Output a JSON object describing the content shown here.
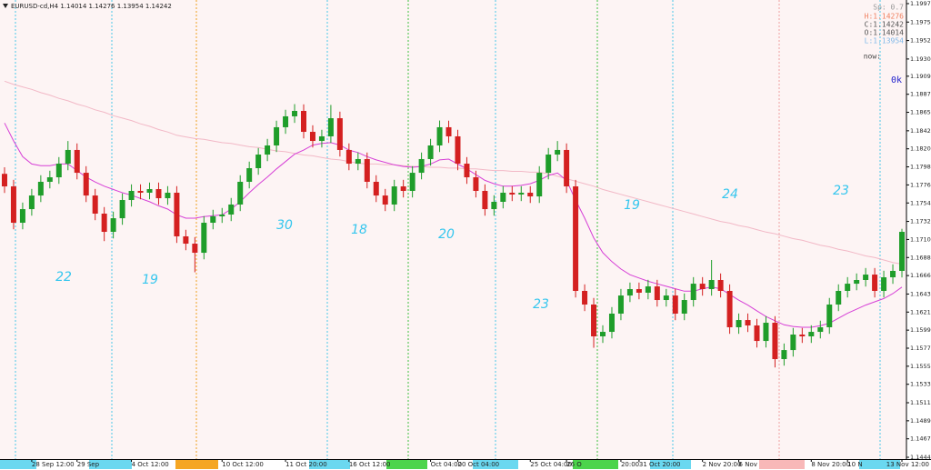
{
  "header": {
    "symbol_line": "EURUSD-cd,H4  1.14014 1.14276 1.13954 1.14242"
  },
  "info_panel": {
    "spread": "Sp: 0.7",
    "high": "H:1.14276",
    "close": "C:1.14242",
    "open": "O:1.14014",
    "low": "L:1.13954",
    "now": "now:",
    "status": "0k"
  },
  "chart_data": {
    "type": "candlestick",
    "categories": [
      null,
      null,
      null,
      "28 Sep 12:00",
      null,
      null,
      null,
      null,
      "29 Sep",
      null,
      null,
      null,
      null,
      null,
      "4 Oct 12:00",
      null,
      null,
      null,
      null,
      null,
      null,
      null,
      null,
      null,
      "10 Oct 12:00",
      null,
      null,
      null,
      null,
      null,
      null,
      "11 Oct 20:00",
      null,
      null,
      null,
      null,
      null,
      null,
      "16 Oct 12:00",
      null,
      null,
      null,
      null,
      null,
      null,
      null,
      null,
      "Oct 04:00",
      null,
      null,
      "20 Oct 04:00",
      null,
      null,
      null,
      null,
      null,
      null,
      null,
      "25 Oct 04:00",
      null,
      null,
      null,
      "26 O",
      null,
      null,
      null,
      null,
      null,
      "20:00",
      null,
      "31 Oct 20:00",
      null,
      null,
      null,
      null,
      null,
      null,
      "2 Nov 20:00",
      null,
      null,
      null,
      "6 Nov",
      null,
      null,
      null,
      null,
      null,
      null,
      null,
      "8 Nov 20:00",
      null,
      null,
      null,
      "10 N",
      null,
      null,
      null,
      null,
      null,
      "13 Nov 12:00"
    ],
    "open": [
      1.179,
      1.17747,
      1.17304,
      1.1747,
      1.17636,
      1.17803,
      1.17858,
      1.18024,
      1.18191,
      1.17913,
      1.17636,
      1.17415,
      1.17193,
      1.17359,
      1.17581,
      1.17692,
      1.1767,
      1.17714,
      1.17603,
      1.1767,
      1.17138,
      1.17049,
      1.16938,
      1.17304,
      1.17382,
      1.17404,
      1.17526,
      1.17803,
      1.17969,
      1.18135,
      1.18246,
      1.18468,
      1.18601,
      1.18667,
      1.18412,
      1.18301,
      1.18357,
      1.18578,
      1.18191,
      1.18024,
      1.1808,
      1.17803,
      1.17636,
      1.17526,
      1.17747,
      1.17692,
      1.17913,
      1.1808,
      1.18246,
      1.18468,
      1.18357,
      1.18024,
      1.17858,
      1.17692,
      1.1747,
      1.17559,
      1.1767,
      1.17648,
      1.1767,
      1.17625,
      1.17913,
      1.18135,
      1.18191,
      1.17747,
      1.16473,
      1.16307,
      1.15919,
      1.15974,
      1.16196,
      1.16417,
      1.16495,
      1.16451,
      1.16528,
      1.16362,
      1.16417,
      1.16196,
      1.16362,
      1.16561,
      1.16495,
      1.16606,
      1.16473,
      1.1603,
      1.16118,
      1.16052,
      1.15863,
      1.16085,
      1.15642,
      1.15752,
      1.15941,
      1.15919,
      1.15974,
      1.1603,
      1.16307,
      1.16473,
      1.16561,
      1.16606,
      1.16672,
      1.16473,
      1.16639,
      1.16717
    ],
    "high": [
      1.1798,
      1.17827,
      1.1755,
      1.17716,
      1.17883,
      1.17938,
      1.18104,
      1.183,
      1.18271,
      1.17993,
      1.17716,
      1.17495,
      1.17439,
      1.17661,
      1.17772,
      1.17772,
      1.17794,
      1.17794,
      1.1775,
      1.1775,
      1.17218,
      1.17129,
      1.17384,
      1.17462,
      1.17484,
      1.17606,
      1.17883,
      1.18049,
      1.18215,
      1.18326,
      1.18548,
      1.18681,
      1.1875,
      1.18747,
      1.18492,
      1.18437,
      1.1874,
      1.18658,
      1.18271,
      1.1816,
      1.1816,
      1.17883,
      1.17716,
      1.17827,
      1.17827,
      1.17993,
      1.1816,
      1.18326,
      1.1855,
      1.18548,
      1.18437,
      1.18104,
      1.17938,
      1.17772,
      1.17639,
      1.1775,
      1.1775,
      1.1775,
      1.1775,
      1.17993,
      1.18215,
      1.183,
      1.18271,
      1.17827,
      1.16553,
      1.16387,
      1.16054,
      1.16276,
      1.16497,
      1.16575,
      1.16575,
      1.16608,
      1.16608,
      1.16497,
      1.16497,
      1.16442,
      1.16641,
      1.16641,
      1.1685,
      1.16686,
      1.16553,
      1.16198,
      1.16198,
      1.16132,
      1.16165,
      1.16165,
      1.15832,
      1.16021,
      1.16021,
      1.16054,
      1.1611,
      1.16387,
      1.16553,
      1.16641,
      1.16686,
      1.16752,
      1.16752,
      1.16719,
      1.16797,
      1.1723
    ],
    "low": [
      1.17667,
      1.17224,
      1.17224,
      1.1739,
      1.17556,
      1.17723,
      1.17778,
      1.17944,
      1.17833,
      1.17556,
      1.17335,
      1.1708,
      1.17113,
      1.17279,
      1.17501,
      1.1759,
      1.1759,
      1.17523,
      1.17523,
      1.17058,
      1.16969,
      1.167,
      1.16858,
      1.17224,
      1.17302,
      1.17324,
      1.17446,
      1.17723,
      1.17889,
      1.18055,
      1.18166,
      1.18388,
      1.18521,
      1.18332,
      1.18221,
      1.18221,
      1.18277,
      1.18111,
      1.17944,
      1.17944,
      1.17723,
      1.17556,
      1.17446,
      1.17446,
      1.17612,
      1.17612,
      1.17833,
      1.18,
      1.18166,
      1.18277,
      1.17944,
      1.17778,
      1.17612,
      1.1739,
      1.1739,
      1.17479,
      1.17568,
      1.17568,
      1.17545,
      1.17545,
      1.17833,
      1.18055,
      1.17667,
      1.16393,
      1.16227,
      1.1578,
      1.15839,
      1.15894,
      1.16116,
      1.16337,
      1.16371,
      1.16371,
      1.16282,
      1.16282,
      1.16116,
      1.16116,
      1.16282,
      1.16415,
      1.16415,
      1.16393,
      1.1595,
      1.1595,
      1.15972,
      1.15783,
      1.15783,
      1.1554,
      1.15562,
      1.15672,
      1.15839,
      1.15839,
      1.15894,
      1.1595,
      1.16227,
      1.16393,
      1.16481,
      1.16526,
      1.16393,
      1.16393,
      1.16559,
      1.16637
    ],
    "close": [
      1.17747,
      1.17304,
      1.1747,
      1.17636,
      1.17803,
      1.17858,
      1.18024,
      1.18191,
      1.17913,
      1.17636,
      1.17415,
      1.17193,
      1.17359,
      1.17581,
      1.17692,
      1.1767,
      1.17714,
      1.17603,
      1.1767,
      1.17138,
      1.17049,
      1.16938,
      1.17304,
      1.17382,
      1.17404,
      1.17526,
      1.17803,
      1.17969,
      1.18135,
      1.18246,
      1.18468,
      1.18601,
      1.18667,
      1.18412,
      1.18301,
      1.18357,
      1.18578,
      1.18191,
      1.18024,
      1.1808,
      1.17803,
      1.17636,
      1.17526,
      1.17747,
      1.17692,
      1.17913,
      1.1808,
      1.18246,
      1.18468,
      1.18357,
      1.18024,
      1.17858,
      1.17692,
      1.1747,
      1.17559,
      1.1767,
      1.17648,
      1.1767,
      1.17625,
      1.17913,
      1.18135,
      1.18191,
      1.17747,
      1.16473,
      1.16307,
      1.15919,
      1.15974,
      1.16196,
      1.16417,
      1.16495,
      1.16451,
      1.16528,
      1.16362,
      1.16417,
      1.16196,
      1.16362,
      1.16561,
      1.16495,
      1.16606,
      1.16473,
      1.1603,
      1.16118,
      1.16052,
      1.15863,
      1.16085,
      1.15642,
      1.15752,
      1.15941,
      1.15919,
      1.15974,
      1.1603,
      1.16307,
      1.16473,
      1.16561,
      1.16606,
      1.16672,
      1.16473,
      1.16639,
      1.16717,
      1.17193
    ],
    "up_color": "#1f9d2a",
    "down_color": "#d42020",
    "series": [
      {
        "color": "#f2b8c6",
        "values": [
          1.1903,
          1.1899,
          1.1896,
          1.1893,
          1.1889,
          1.1886,
          1.1882,
          1.1879,
          1.1875,
          1.1872,
          1.1868,
          1.1865,
          1.1861,
          1.1858,
          1.1855,
          1.1851,
          1.1848,
          1.1844,
          1.1841,
          1.1837,
          1.1835,
          1.1833,
          1.1832,
          1.183,
          1.1828,
          1.1827,
          1.1825,
          1.1823,
          1.1822,
          1.182,
          1.1818,
          1.1817,
          1.1815,
          1.1813,
          1.1812,
          1.181,
          1.1808,
          1.1807,
          1.1805,
          1.1803,
          1.1802,
          1.1802,
          1.1801,
          1.1801,
          1.18,
          1.1799,
          1.1799,
          1.1798,
          1.1798,
          1.1797,
          1.1797,
          1.1796,
          1.1796,
          1.1795,
          1.1794,
          1.1794,
          1.1793,
          1.1793,
          1.1792,
          1.1792,
          1.179,
          1.1787,
          1.1784,
          1.1781,
          1.1778,
          1.1775,
          1.1771,
          1.1768,
          1.1765,
          1.1762,
          1.1759,
          1.1756,
          1.1753,
          1.175,
          1.1747,
          1.1744,
          1.1741,
          1.1738,
          1.1735,
          1.1732,
          1.173,
          1.1727,
          1.1725,
          1.1722,
          1.1719,
          1.1717,
          1.1714,
          1.1711,
          1.1709,
          1.1706,
          1.1703,
          1.1701,
          1.1698,
          1.1696,
          1.1693,
          1.169,
          1.1688,
          1.1685,
          1.1682,
          1.168
        ]
      },
      {
        "color": "#d63fd6",
        "values": [
          1.1852,
          1.183,
          1.1811,
          1.1802,
          1.18,
          1.18,
          1.1802,
          1.1802,
          1.1794,
          1.1786,
          1.178,
          1.1775,
          1.1771,
          1.1767,
          1.1764,
          1.176,
          1.1756,
          1.1751,
          1.1747,
          1.174,
          1.1736,
          1.1736,
          1.1738,
          1.1739,
          1.174,
          1.1747,
          1.1756,
          1.1767,
          1.1777,
          1.1786,
          1.1796,
          1.1805,
          1.1814,
          1.1819,
          1.1825,
          1.1827,
          1.1828,
          1.1825,
          1.1819,
          1.1816,
          1.1811,
          1.1807,
          1.1804,
          1.1801,
          1.1799,
          1.1798,
          1.1799,
          1.1802,
          1.1807,
          1.1808,
          1.1802,
          1.1796,
          1.1789,
          1.1782,
          1.1778,
          1.1775,
          1.1775,
          1.1776,
          1.1778,
          1.1782,
          1.1788,
          1.1791,
          1.1782,
          1.1758,
          1.1736,
          1.1712,
          1.1694,
          1.1683,
          1.1674,
          1.1667,
          1.1663,
          1.1659,
          1.1656,
          1.1653,
          1.165,
          1.1647,
          1.1647,
          1.165,
          1.1652,
          1.165,
          1.1643,
          1.1636,
          1.163,
          1.1623,
          1.1616,
          1.1611,
          1.1606,
          1.1604,
          1.1603,
          1.1603,
          1.1605,
          1.1608,
          1.1614,
          1.162,
          1.1625,
          1.163,
          1.1634,
          1.1638,
          1.1644,
          1.1652
        ]
      }
    ],
    "ylim": [
      1.14423,
      1.20019
    ],
    "yticks": [
      1.19975,
      {
        "value": 1.1975,
        "label": "1.19750"
      },
      1.19525,
      {
        "value": 1.193,
        "label": "1.19300"
      },
      {
        "value": 1.1909,
        "label": "1.19090"
      },
      {
        "value": 1.1887,
        "label": "1.18870"
      },
      {
        "value": 1.1865,
        "label": "1.18650"
      },
      1.18425,
      1.18205,
      1.17985,
      1.17765,
      1.17545,
      {
        "value": 1.1732,
        "label": "1.17320"
      },
      {
        "value": 1.171,
        "label": "1.17100"
      },
      {
        "value": 1.1688,
        "label": "1.16880"
      },
      {
        "value": 1.1666,
        "label": "1.16660"
      },
      1.16435,
      1.16215,
      1.15995,
      1.15775,
      1.15555,
      1.15335,
      {
        "value": 1.1511,
        "label": "1.15110"
      },
      {
        "value": 1.1489,
        "label": "1.14890"
      },
      {
        "value": 1.1467,
        "label": "1.14670"
      },
      1.14445
    ],
    "annotations": [
      "22",
      "19",
      "30",
      "18",
      "20",
      "23",
      "19",
      "24",
      "23"
    ]
  }
}
